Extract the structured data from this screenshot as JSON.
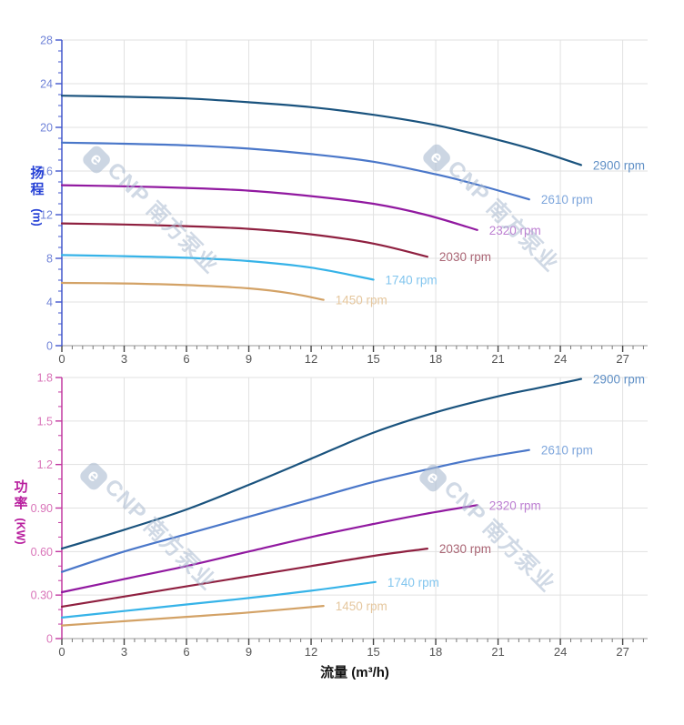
{
  "watermark": {
    "logo_letter": "e",
    "text": "CNP 南方泵业"
  },
  "xaxis": {
    "title": "流量 (m³/h)",
    "tick_values": [
      0,
      3,
      6,
      9,
      12,
      15,
      18,
      21,
      24,
      27
    ],
    "tick_labels": [
      "0",
      "3",
      "6",
      "9",
      "12",
      "15",
      "18",
      "21",
      "24",
      "27"
    ],
    "minor_step": 0.5,
    "lim": [
      0,
      28.2
    ]
  },
  "chart_data": [
    {
      "type": "line",
      "name": "head-vs-flow",
      "xlabel": "流量 (m³/h)",
      "ylabel": "扬程 (m)",
      "ylabel_chars": [
        "扬",
        "程"
      ],
      "ylabel_unit": "(m)",
      "ylim": [
        0,
        28
      ],
      "y_minor_step": 1,
      "grid": true,
      "legend": "end-of-line labels",
      "axis_color": "#4156cc",
      "tick_label_color": "#7083d8",
      "title_color": "#2742d6",
      "y_ticks": [
        {
          "v": 0,
          "label": "0"
        },
        {
          "v": 4,
          "label": "4"
        },
        {
          "v": 8,
          "label": "8"
        },
        {
          "v": 12,
          "label": "12"
        },
        {
          "v": 16,
          "label": "16"
        },
        {
          "v": 20,
          "label": "20"
        },
        {
          "v": 24,
          "label": "24"
        },
        {
          "v": 28,
          "label": "28"
        }
      ],
      "series": [
        {
          "name": "2900 rpm",
          "color": "#1a537e",
          "label_color": "#6090c6",
          "points": [
            [
              0,
              22.9
            ],
            [
              3,
              22.8
            ],
            [
              6,
              22.65
            ],
            [
              9,
              22.3
            ],
            [
              12,
              21.85
            ],
            [
              15,
              21.15
            ],
            [
              18,
              20.2
            ],
            [
              21,
              18.85
            ],
            [
              23,
              17.8
            ],
            [
              25,
              16.55
            ]
          ]
        },
        {
          "name": "2610 rpm",
          "color": "#4a77c9",
          "label_color": "#7ea6dc",
          "points": [
            [
              0,
              18.6
            ],
            [
              3,
              18.5
            ],
            [
              6,
              18.35
            ],
            [
              9,
              18.05
            ],
            [
              12,
              17.55
            ],
            [
              15,
              16.85
            ],
            [
              18,
              15.7
            ],
            [
              20,
              14.75
            ],
            [
              22.5,
              13.4
            ]
          ]
        },
        {
          "name": "2320 rpm",
          "color": "#9119a0",
          "label_color": "#bd7fd2",
          "points": [
            [
              0,
              14.7
            ],
            [
              3,
              14.6
            ],
            [
              6,
              14.45
            ],
            [
              9,
              14.2
            ],
            [
              12,
              13.7
            ],
            [
              15,
              13.0
            ],
            [
              17.5,
              12.0
            ],
            [
              20,
              10.6
            ]
          ]
        },
        {
          "name": "2030 rpm",
          "color": "#8f2040",
          "label_color": "#aa6574",
          "points": [
            [
              0,
              11.2
            ],
            [
              3,
              11.1
            ],
            [
              6,
              10.95
            ],
            [
              9,
              10.7
            ],
            [
              12,
              10.2
            ],
            [
              15,
              9.35
            ],
            [
              17.6,
              8.15
            ]
          ]
        },
        {
          "name": "1740 rpm",
          "color": "#36b3e8",
          "label_color": "#82c5ee",
          "points": [
            [
              0,
              8.3
            ],
            [
              3,
              8.2
            ],
            [
              6,
              8.05
            ],
            [
              9,
              7.75
            ],
            [
              12,
              7.15
            ],
            [
              15,
              6.05
            ]
          ]
        },
        {
          "name": "1450 rpm",
          "color": "#d3a266",
          "label_color": "#e5c79e",
          "points": [
            [
              0,
              5.75
            ],
            [
              3,
              5.7
            ],
            [
              6,
              5.55
            ],
            [
              9,
              5.25
            ],
            [
              11,
              4.8
            ],
            [
              12.6,
              4.2
            ]
          ]
        }
      ]
    },
    {
      "type": "line",
      "name": "power-vs-flow",
      "xlabel": "流量 (m³/h)",
      "ylabel": "功率 (KW)",
      "ylabel_chars": [
        "功",
        "率"
      ],
      "ylabel_unit": "(KW)",
      "ylim": [
        0,
        1.8
      ],
      "y_minor_step": 0.1,
      "grid": true,
      "legend": "end-of-line labels",
      "axis_color": "#c238a0",
      "tick_label_color": "#d973b8",
      "title_color": "#b81f9e",
      "y_ticks": [
        {
          "v": 0,
          "label": "0"
        },
        {
          "v": 0.3,
          "label": "0.30"
        },
        {
          "v": 0.6,
          "label": "0.60"
        },
        {
          "v": 0.9,
          "label": "0.90"
        },
        {
          "v": 1.2,
          "label": "1.2"
        },
        {
          "v": 1.5,
          "label": "1.5"
        },
        {
          "v": 1.8,
          "label": "1.8"
        }
      ],
      "series": [
        {
          "name": "2900 rpm",
          "color": "#1a537e",
          "label_color": "#6090c6",
          "points": [
            [
              0,
              0.62
            ],
            [
              3,
              0.75
            ],
            [
              6,
              0.89
            ],
            [
              9,
              1.06
            ],
            [
              12,
              1.24
            ],
            [
              15,
              1.42
            ],
            [
              18,
              1.56
            ],
            [
              21,
              1.67
            ],
            [
              23,
              1.73
            ],
            [
              25,
              1.79
            ]
          ]
        },
        {
          "name": "2610 rpm",
          "color": "#4a77c9",
          "label_color": "#7ea6dc",
          "points": [
            [
              0,
              0.46
            ],
            [
              3,
              0.6
            ],
            [
              6,
              0.72
            ],
            [
              9,
              0.84
            ],
            [
              12,
              0.96
            ],
            [
              15,
              1.08
            ],
            [
              18,
              1.18
            ],
            [
              20,
              1.24
            ],
            [
              22.5,
              1.3
            ]
          ]
        },
        {
          "name": "2320 rpm",
          "color": "#9119a0",
          "label_color": "#bd7fd2",
          "points": [
            [
              0,
              0.32
            ],
            [
              3,
              0.41
            ],
            [
              6,
              0.5
            ],
            [
              9,
              0.6
            ],
            [
              12,
              0.7
            ],
            [
              15,
              0.79
            ],
            [
              17.5,
              0.86
            ],
            [
              20,
              0.92
            ]
          ]
        },
        {
          "name": "2030 rpm",
          "color": "#8f2040",
          "label_color": "#aa6574",
          "points": [
            [
              0,
              0.22
            ],
            [
              3,
              0.29
            ],
            [
              6,
              0.36
            ],
            [
              9,
              0.43
            ],
            [
              12,
              0.5
            ],
            [
              15,
              0.57
            ],
            [
              17.6,
              0.62
            ]
          ]
        },
        {
          "name": "1740 rpm",
          "color": "#36b3e8",
          "label_color": "#82c5ee",
          "points": [
            [
              0,
              0.145
            ],
            [
              3,
              0.19
            ],
            [
              6,
              0.235
            ],
            [
              9,
              0.28
            ],
            [
              12,
              0.33
            ],
            [
              15.1,
              0.39
            ]
          ]
        },
        {
          "name": "1450 rpm",
          "color": "#d3a266",
          "label_color": "#e5c79e",
          "points": [
            [
              0,
              0.09
            ],
            [
              3,
              0.12
            ],
            [
              6,
              0.15
            ],
            [
              9,
              0.18
            ],
            [
              12.6,
              0.225
            ]
          ]
        }
      ]
    }
  ]
}
